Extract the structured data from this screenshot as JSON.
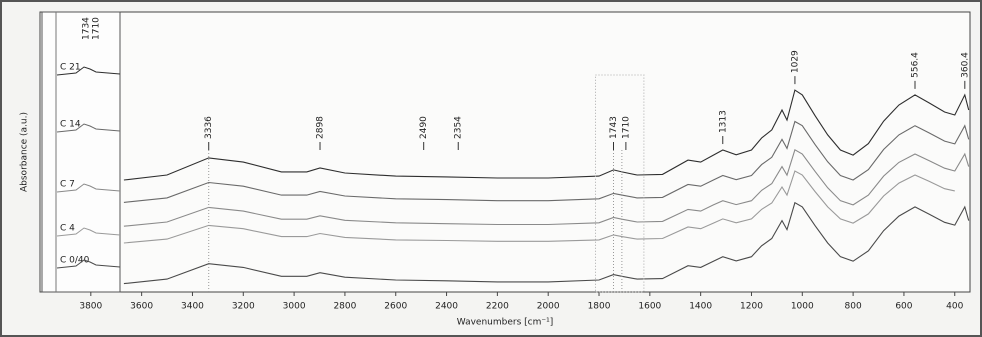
{
  "chart_data": {
    "type": "line",
    "x_label": "Wavenumbers [cm⁻¹]",
    "y_label": "Absorbance (a.u.)",
    "xlim": [
      4000,
      340
    ],
    "ylim": [
      0,
      10
    ],
    "xticks": [
      3800,
      3600,
      3400,
      3200,
      3000,
      2800,
      2600,
      2400,
      2200,
      2000,
      1800,
      1600,
      1400,
      1200,
      1000,
      800,
      600,
      400
    ],
    "peak_labels": [
      3336,
      2898,
      2490,
      2354,
      1743,
      1710,
      1313,
      1029,
      556.4,
      360.4
    ],
    "inset_peak_labels": [
      1734,
      1710
    ],
    "x": [
      3670,
      3500,
      3336,
      3200,
      3050,
      2950,
      2898,
      2800,
      2600,
      2400,
      2200,
      2000,
      1800,
      1743,
      1710,
      1650,
      1550,
      1450,
      1400,
      1350,
      1313,
      1260,
      1200,
      1160,
      1120,
      1080,
      1060,
      1029,
      1000,
      950,
      900,
      850,
      800,
      740,
      680,
      620,
      556.4,
      500,
      440,
      400,
      360.4,
      345
    ],
    "series": [
      {
        "name": "C 21",
        "color": "#2e2e2e",
        "values": [
          4.0,
          4.18,
          4.79,
          4.64,
          4.29,
          4.29,
          4.43,
          4.25,
          4.14,
          4.11,
          4.07,
          4.07,
          4.14,
          4.36,
          4.29,
          4.18,
          4.2,
          4.71,
          4.64,
          4.89,
          5.07,
          4.9,
          5.07,
          5.5,
          5.79,
          6.5,
          6.14,
          7.21,
          7.04,
          6.3,
          5.61,
          5.07,
          4.89,
          5.3,
          6.1,
          6.68,
          7.04,
          6.75,
          6.43,
          6.32,
          7.04,
          6.5
        ]
      },
      {
        "name": "C 14",
        "color": "#6a6a6a",
        "values": [
          3.2,
          3.36,
          3.91,
          3.78,
          3.46,
          3.46,
          3.59,
          3.43,
          3.33,
          3.3,
          3.26,
          3.26,
          3.33,
          3.52,
          3.46,
          3.36,
          3.38,
          3.84,
          3.78,
          4.0,
          4.16,
          4.01,
          4.16,
          4.55,
          4.81,
          5.45,
          5.13,
          6.09,
          5.94,
          5.27,
          4.65,
          4.16,
          4.0,
          4.37,
          5.09,
          5.61,
          5.94,
          5.68,
          5.39,
          5.29,
          5.94,
          5.45
        ]
      },
      {
        "name": "C 7",
        "color": "#8a8a8a",
        "values": [
          2.35,
          2.5,
          3.02,
          2.89,
          2.6,
          2.6,
          2.72,
          2.56,
          2.47,
          2.44,
          2.41,
          2.41,
          2.47,
          2.66,
          2.6,
          2.5,
          2.52,
          2.95,
          2.89,
          3.11,
          3.26,
          3.12,
          3.26,
          3.63,
          3.87,
          4.48,
          4.17,
          5.08,
          4.93,
          4.31,
          3.72,
          3.26,
          3.11,
          3.46,
          4.14,
          4.63,
          4.93,
          4.69,
          4.42,
          4.32,
          4.93,
          4.48
        ]
      },
      {
        "name": "C 4",
        "color": "#9a9a9a",
        "values": [
          1.75,
          1.89,
          2.38,
          2.26,
          1.98,
          1.98,
          2.09,
          1.95,
          1.86,
          1.84,
          1.81,
          1.81,
          1.86,
          2.04,
          1.98,
          1.89,
          1.91,
          2.32,
          2.26,
          2.46,
          2.61,
          2.47,
          2.61,
          2.95,
          3.18,
          3.75,
          3.46,
          4.32,
          4.18,
          3.59,
          3.04,
          2.61,
          2.46,
          2.79,
          3.43,
          3.89,
          4.18,
          3.95,
          3.69,
          3.61,
          null,
          null
        ]
      },
      {
        "name": "C 0/40",
        "color": "#4a4a4a",
        "values": [
          0.3,
          0.46,
          1.01,
          0.88,
          0.56,
          0.56,
          0.69,
          0.53,
          0.43,
          0.4,
          0.36,
          0.36,
          0.43,
          0.62,
          0.56,
          0.46,
          0.48,
          0.94,
          0.88,
          1.1,
          1.26,
          1.11,
          1.26,
          1.65,
          1.91,
          2.55,
          2.23,
          3.19,
          3.04,
          2.37,
          1.75,
          1.26,
          1.1,
          1.47,
          2.19,
          2.71,
          3.04,
          2.78,
          2.49,
          2.39,
          3.04,
          2.55
        ]
      }
    ]
  }
}
